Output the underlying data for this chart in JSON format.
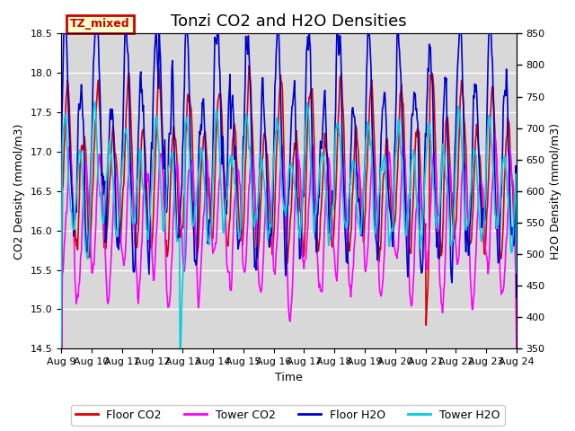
{
  "title": "Tonzi CO2 and H2O Densities",
  "xlabel": "Time",
  "ylabel_left": "CO2 Density (mmol/m3)",
  "ylabel_right": "H2O Density (mmol/m3)",
  "ylim_left": [
    14.5,
    18.5
  ],
  "ylim_right": [
    350,
    850
  ],
  "xlim": [
    0,
    360
  ],
  "xtick_labels": [
    "Aug 9",
    "Aug 10",
    "Aug 11",
    "Aug 12",
    "Aug 13",
    "Aug 14",
    "Aug 15",
    "Aug 16",
    "Aug 17",
    "Aug 18",
    "Aug 19",
    "Aug 20",
    "Aug 21",
    "Aug 22",
    "Aug 23",
    "Aug 24"
  ],
  "xtick_positions": [
    0,
    24,
    48,
    72,
    96,
    120,
    144,
    168,
    192,
    216,
    240,
    264,
    288,
    312,
    336,
    360
  ],
  "annotation_text": "TZ_mixed",
  "annotation_color": "#cc0000",
  "annotation_bg": "#ffffcc",
  "bg_color": "#d8d8d8",
  "fig_bg": "#ffffff",
  "colors": {
    "floor_co2": "#dd0000",
    "tower_co2": "#ff00ff",
    "floor_h2o": "#0000cc",
    "tower_h2o": "#00ccdd"
  },
  "legend_labels": [
    "Floor CO2",
    "Tower CO2",
    "Floor H2O",
    "Tower H2O"
  ],
  "title_fontsize": 13,
  "label_fontsize": 9,
  "tick_fontsize": 8,
  "linewidth": 1.2
}
